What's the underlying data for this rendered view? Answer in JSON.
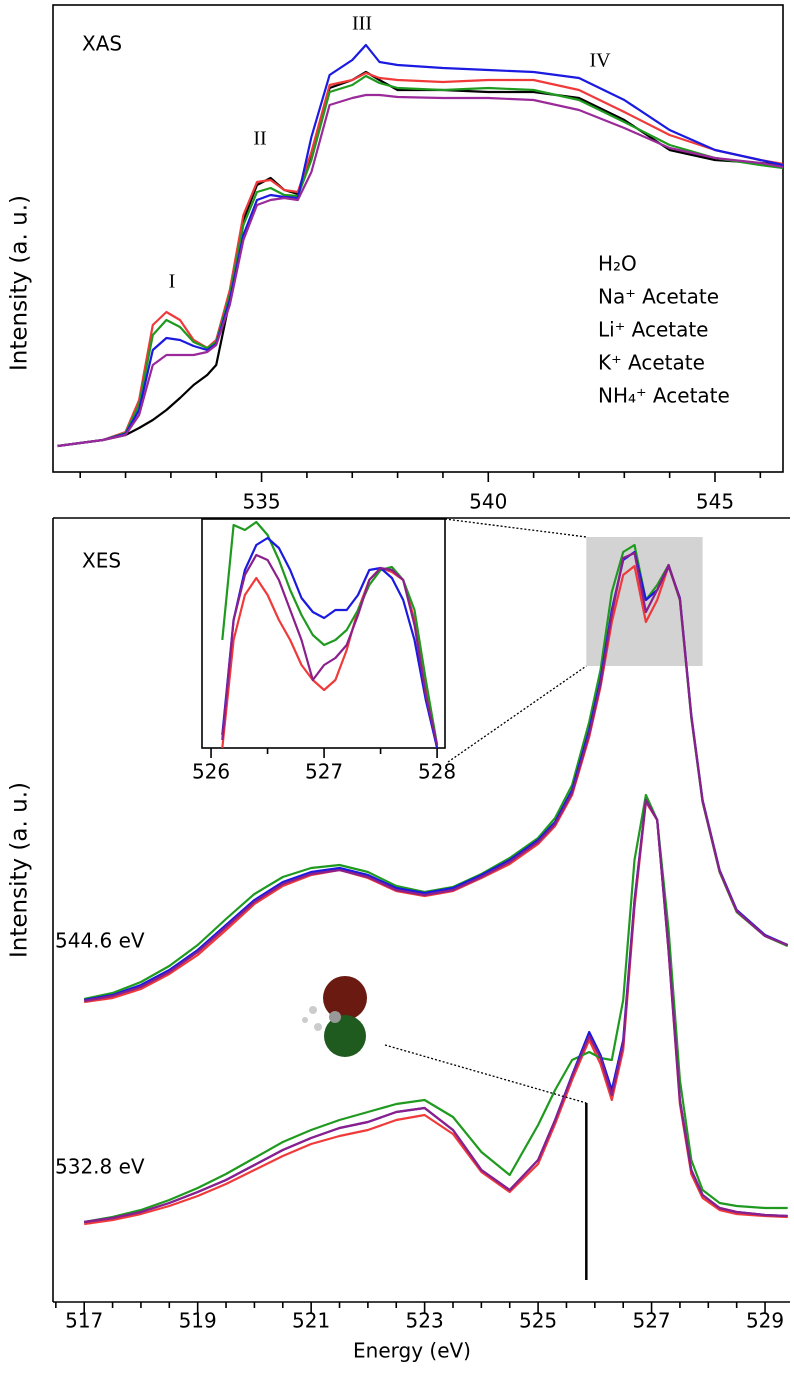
{
  "chart_data": [
    {
      "type": "line",
      "label": "XAS",
      "ylabel": "Intensity (a. u.)",
      "xlim": [
        530.4,
        546.5
      ],
      "ylim": [
        0,
        467
      ],
      "xticks": [
        535,
        540,
        545
      ],
      "xminor_ticks": [
        531,
        532,
        533,
        534,
        536,
        537,
        538,
        539,
        541,
        542,
        543,
        544,
        546
      ],
      "annotations": [
        "I",
        "II",
        "III",
        "IV"
      ],
      "legend": "lower right",
      "x": [
        530.5,
        531,
        531.5,
        532,
        532.3,
        532.6,
        532.9,
        533.2,
        533.5,
        533.8,
        534,
        534.3,
        534.6,
        534.9,
        535.2,
        535.5,
        535.8,
        536.1,
        536.5,
        537,
        537.3,
        537.6,
        538,
        539,
        540,
        541,
        542,
        543,
        544,
        545,
        546,
        546.5
      ],
      "series": [
        {
          "name": "H₂O",
          "color": "#000000",
          "values": [
            26,
            29,
            32,
            37,
            44,
            52,
            62,
            74,
            87,
            97,
            107,
            172,
            252,
            287,
            294,
            282,
            278,
            318,
            384,
            392,
            400,
            392,
            382,
            382,
            380,
            380,
            374,
            352,
            322,
            312,
            309,
            307
          ]
        },
        {
          "name": "Na⁺ Acetate",
          "color": "#f03a3a",
          "values": [
            26,
            29,
            32,
            40,
            72,
            147,
            160,
            152,
            132,
            124,
            132,
            182,
            257,
            290,
            292,
            282,
            280,
            320,
            387,
            392,
            399,
            394,
            392,
            390,
            392,
            392,
            382,
            360,
            337,
            322,
            312,
            308
          ]
        },
        {
          "name": "Li⁺ Acetate",
          "color": "#1f9a1f",
          "values": [
            26,
            29,
            32,
            39,
            67,
            137,
            152,
            145,
            130,
            124,
            130,
            177,
            247,
            280,
            284,
            277,
            276,
            312,
            380,
            387,
            396,
            389,
            384,
            382,
            384,
            382,
            372,
            350,
            327,
            314,
            307,
            304
          ]
        },
        {
          "name": "K⁺ Acetate",
          "color": "#1a1ae0",
          "values": [
            26,
            29,
            32,
            38,
            62,
            122,
            134,
            132,
            126,
            122,
            128,
            172,
            237,
            272,
            277,
            275,
            274,
            335,
            397,
            412,
            427,
            410,
            407,
            404,
            402,
            400,
            394,
            372,
            342,
            322,
            312,
            307
          ]
        },
        {
          "name": "NH₄⁺ Acetate",
          "color": "#9a2a9a",
          "values": [
            26,
            29,
            32,
            37,
            57,
            107,
            117,
            117,
            117,
            120,
            127,
            167,
            232,
            267,
            272,
            274,
            272,
            300,
            367,
            374,
            377,
            377,
            375,
            374,
            374,
            372,
            362,
            344,
            324,
            314,
            309,
            305
          ]
        }
      ]
    },
    {
      "type": "line",
      "label": "XES",
      "xlabel": "Energy (eV)",
      "ylabel": "Intensity (a. u.)",
      "xlim": [
        516.45,
        529.44
      ],
      "ylim": [
        0,
        784
      ],
      "xticks": [
        517,
        519,
        521,
        523,
        525,
        527,
        529
      ],
      "xminor_ticks": [
        516.5,
        517.5,
        518,
        518.5,
        519.5,
        520,
        520.5,
        521.5,
        522,
        522.5,
        523.5,
        524,
        524.5,
        525.5,
        526,
        526.5,
        527.5,
        528,
        528.5,
        529.5
      ],
      "x": [
        517,
        517.5,
        518,
        518.5,
        519,
        519.5,
        520,
        520.5,
        521,
        521.5,
        522,
        522.5,
        523,
        523.5,
        524,
        524.5,
        525,
        525.3,
        525.6,
        525.9,
        526.1,
        526.3,
        526.5,
        526.7,
        526.9,
        527.1,
        527.3,
        527.5,
        527.7,
        527.9,
        528.2,
        528.5,
        529,
        529.4
      ],
      "groups": [
        {
          "label": "544.6 eV",
          "series": [
            {
              "color": "#f03a3a",
              "values": [
                300,
                304,
                313,
                328,
                347,
                372,
                398,
                416,
                427,
                432,
                424,
                411,
                406,
                411,
                424,
                438,
                458,
                476,
                507,
                565,
                615,
                680,
                727,
                736,
                680,
                702,
                736,
                702,
                585,
                500,
                430,
                390,
                366,
                356
              ]
            },
            {
              "color": "#1f9a1f",
              "values": [
                303,
                309,
                320,
                336,
                357,
                383,
                408,
                425,
                434,
                437,
                430,
                416,
                410,
                415,
                428,
                444,
                464,
                484,
                517,
                580,
                632,
                710,
                750,
                757,
                702,
                717,
                737,
                702,
                584,
                500,
                430,
                390,
                366,
                356
              ]
            },
            {
              "color": "#1a1ae0",
              "values": [
                302,
                307,
                317,
                332,
                352,
                377,
                402,
                420,
                430,
                434,
                427,
                414,
                409,
                414,
                427,
                442,
                462,
                480,
                512,
                572,
                622,
                692,
                742,
                750,
                702,
                712,
                736,
                704,
                587,
                502,
                432,
                392,
                367,
                357
              ]
            },
            {
              "color": "#8b1f8b",
              "values": [
                301,
                306,
                315,
                330,
                350,
                375,
                400,
                418,
                428,
                432,
                425,
                412,
                407,
                412,
                425,
                440,
                460,
                478,
                509,
                568,
                618,
                688,
                744,
                749,
                690,
                712,
                737,
                703,
                586,
                501,
                431,
                391,
                366,
                357
              ]
            }
          ]
        },
        {
          "label": "532.8 eV",
          "series": [
            {
              "color": "#f03a3a",
              "values": [
                78,
                82,
                88,
                96,
                106,
                118,
                132,
                146,
                158,
                166,
                172,
                182,
                187,
                168,
                130,
                110,
                138,
                178,
                222,
                262,
                238,
                202,
                252,
                395,
                500,
                482,
                350,
                198,
                128,
                104,
                92,
                88,
                86,
                85
              ]
            },
            {
              "color": "#1f9a1f",
              "values": [
                80,
                85,
                92,
                102,
                114,
                128,
                144,
                160,
                172,
                182,
                190,
                198,
                202,
                185,
                150,
                127,
                177,
                212,
                242,
                250,
                244,
                242,
                302,
                442,
                507,
                482,
                372,
                222,
                142,
                112,
                99,
                96,
                94,
                94
              ]
            },
            {
              "color": "#1a1ae0",
              "values": [
                80,
                84,
                90,
                99,
                110,
                122,
                137,
                152,
                164,
                174,
                180,
                190,
                194,
                172,
                132,
                112,
                142,
                182,
                227,
                270,
                247,
                212,
                262,
                402,
                502,
                482,
                352,
                202,
                132,
                107,
                94,
                90,
                87,
                86
              ]
            },
            {
              "color": "#8b1f8b",
              "values": [
                80,
                84,
                90,
                99,
                110,
                122,
                137,
                152,
                164,
                174,
                180,
                190,
                194,
                172,
                132,
                112,
                142,
                182,
                226,
                266,
                244,
                207,
                258,
                400,
                502,
                482,
                352,
                202,
                132,
                107,
                94,
                90,
                87,
                86
              ]
            }
          ]
        }
      ],
      "highlight_x": [
        525.85,
        527.9
      ],
      "highlight_y": [
        636,
        765
      ],
      "stick_x": 525.85,
      "stick_y": [
        22,
        199
      ]
    },
    {
      "type": "line",
      "xlim": [
        525.92,
        528.07
      ],
      "ylim": [
        0,
        229
      ],
      "xticks": [
        526,
        527,
        528
      ],
      "xminor_ticks": [
        526.5,
        527.5
      ],
      "x": [
        526.1,
        526.2,
        526.3,
        526.4,
        526.5,
        526.6,
        526.7,
        526.8,
        526.9,
        527.0,
        527.1,
        527.2,
        527.3,
        527.4,
        527.5,
        527.6,
        527.7,
        527.8,
        527.9,
        528.0
      ],
      "series": [
        {
          "color": "#f03a3a",
          "values": [
            0,
            108,
            153,
            170,
            153,
            128,
            108,
            83,
            68,
            58,
            68,
            98,
            138,
            168,
            180,
            176,
            168,
            128,
            58,
            0
          ]
        },
        {
          "color": "#1f9a1f",
          "values": [
            108,
            223,
            218,
            226,
            213,
            188,
            158,
            133,
            113,
            103,
            108,
            118,
            138,
            163,
            178,
            181,
            168,
            138,
            68,
            3
          ]
        },
        {
          "color": "#1a1ae0",
          "values": [
            13,
            128,
            178,
            203,
            210,
            200,
            178,
            150,
            136,
            130,
            138,
            138,
            153,
            178,
            180,
            170,
            148,
            108,
            48,
            0
          ]
        },
        {
          "color": "#8b1f8b",
          "values": [
            8,
            128,
            173,
            193,
            188,
            168,
            138,
            108,
            68,
            83,
            90,
            103,
            133,
            168,
            180,
            178,
            168,
            123,
            53,
            3
          ]
        }
      ]
    }
  ]
}
